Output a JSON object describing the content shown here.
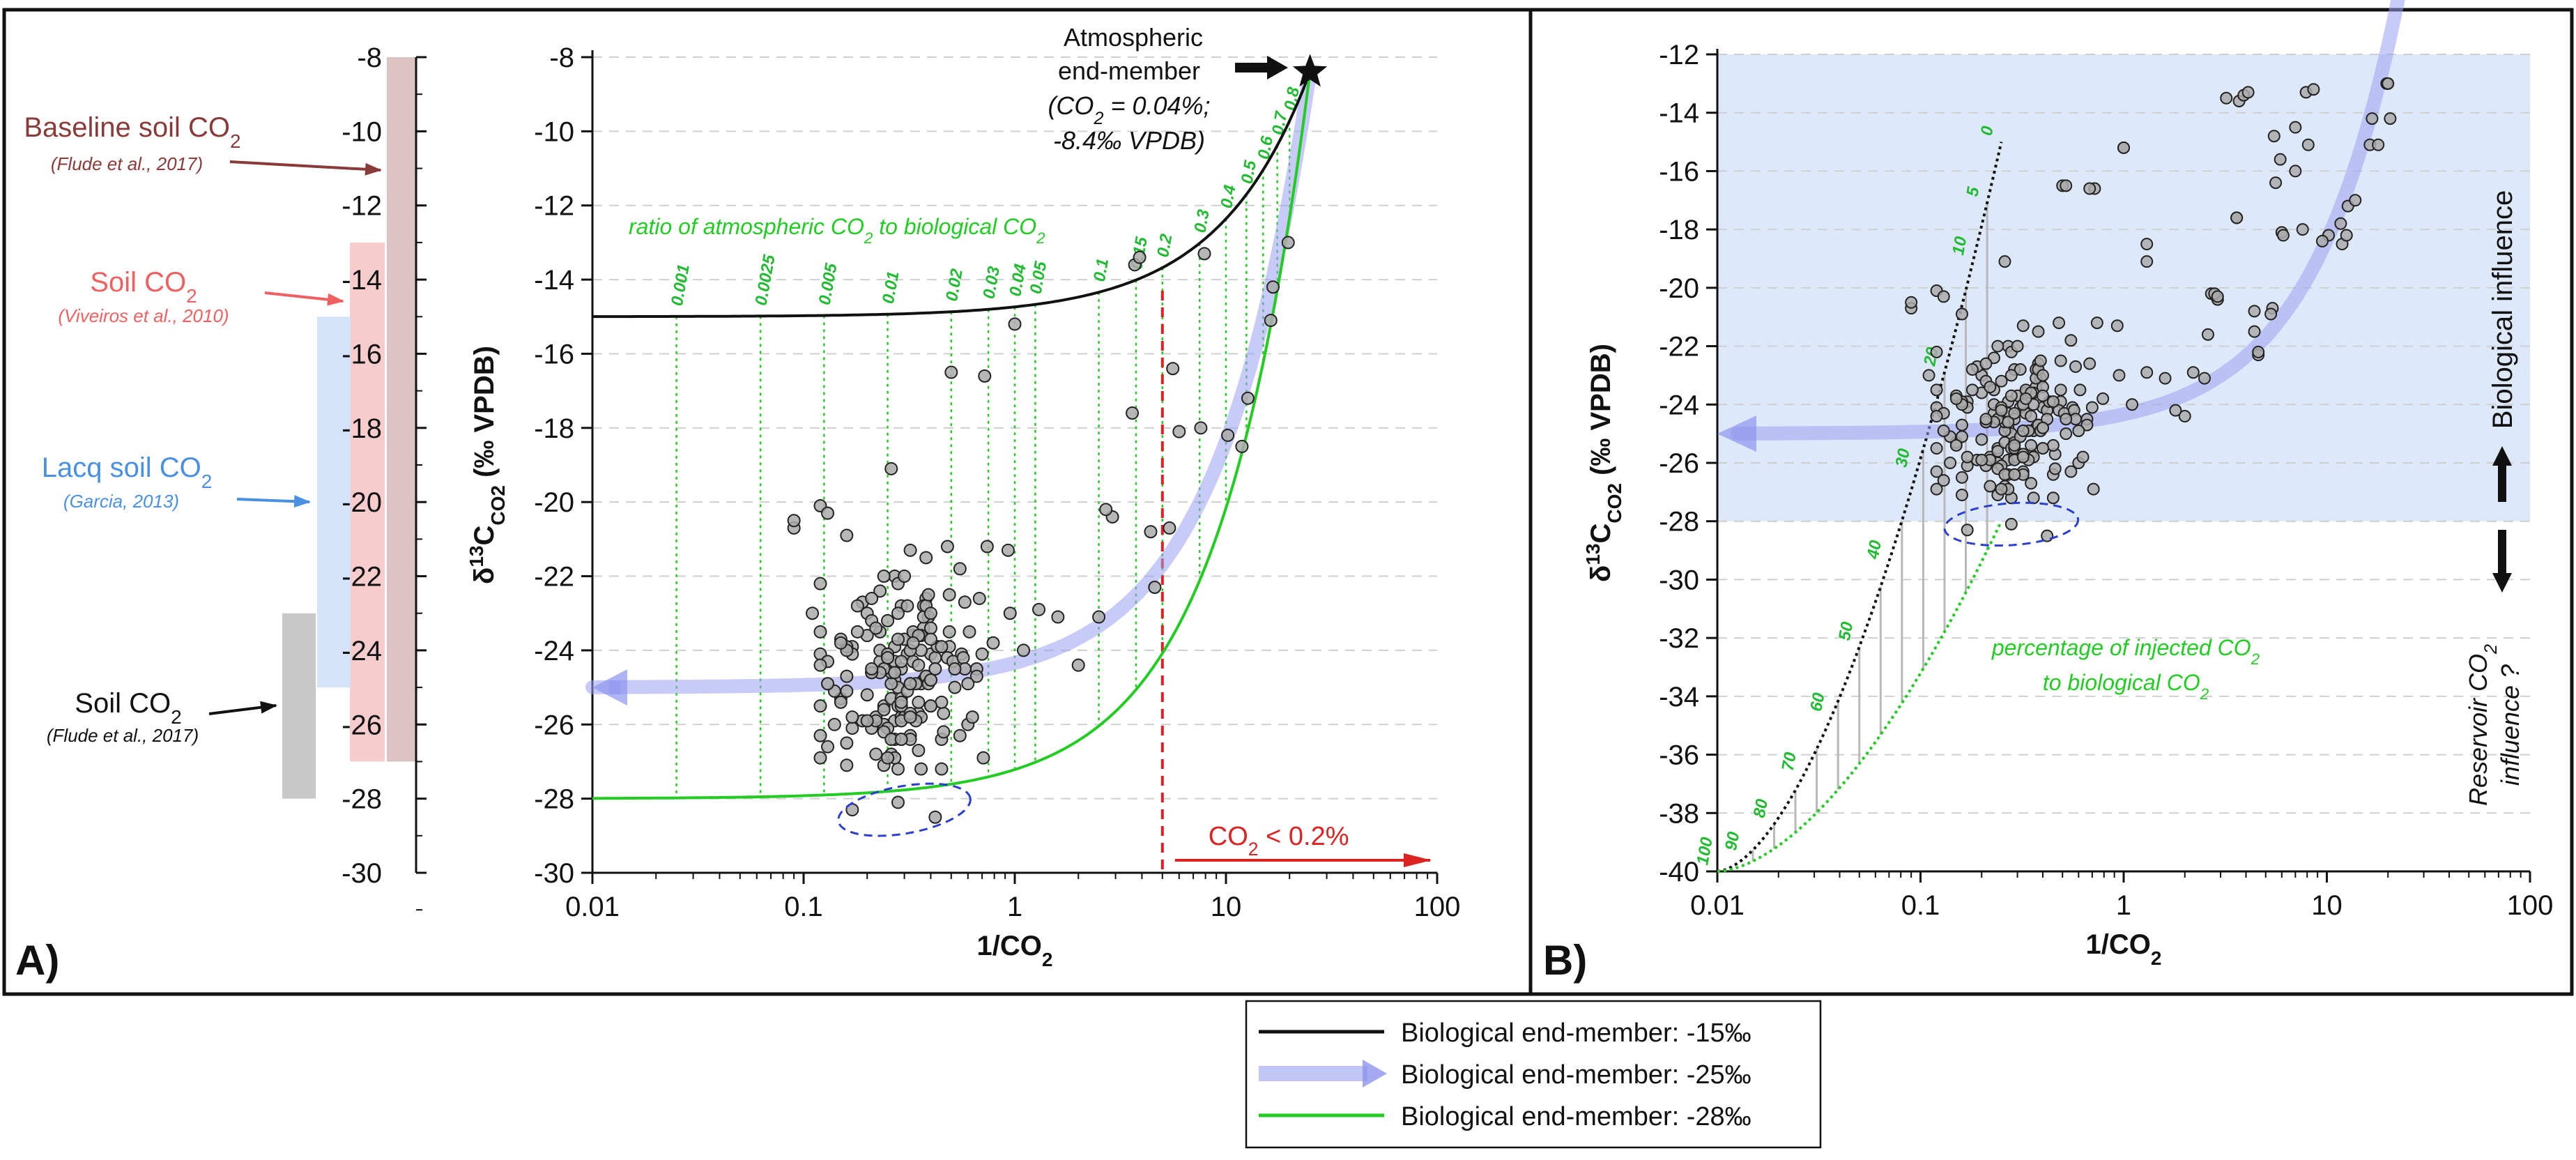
{
  "colors": {
    "black_curve": "#111111",
    "blue_curve": "#9aa0f0",
    "green_curve": "#22cc22",
    "red": "#dd2222",
    "band_baseline": "#d9bcbc",
    "band_soil": "#f6c6c6",
    "band_lacq": "#cfe0fa",
    "band_flude": "#c2c2c2",
    "shade_B": "#dde9fb",
    "points": "#aaaaaa",
    "arrow_baseline": "#8b3a3a",
    "arrow_soil": "#f06060",
    "arrow_lacq": "#4a90e2",
    "dashed_ellipse": "#2a3fcf"
  },
  "panelA": {
    "label": "A)",
    "scale_ticks": [
      "-8",
      "-10",
      "-12",
      "-14",
      "-16",
      "-18",
      "-20",
      "-22",
      "-24",
      "-26",
      "-28",
      "-30"
    ],
    "sources": [
      {
        "title": "Baseline soil CO",
        "sub": "2",
        "cite": "(Flude et al., 2017)",
        "range": [
          -8,
          -27
        ]
      },
      {
        "title": "Soil CO",
        "sub": "2",
        "cite": "(Viveiros et al., 2010)",
        "range": [
          -13,
          -27
        ]
      },
      {
        "title": "Lacq soil CO",
        "sub": "2",
        "cite": "(Garcia, 2013)",
        "range": [
          -15,
          -25
        ]
      },
      {
        "title": "Soil CO",
        "sub": "2",
        "cite": "(Flude et al., 2017)",
        "range": [
          -23,
          -28
        ]
      }
    ]
  },
  "panelB": {
    "label": "B)"
  },
  "chart_data": [
    {
      "type": "scatter",
      "title": "",
      "xlabel": "1/CO2",
      "ylabel": "δ13C CO2 (‰ VPDB)",
      "ylabel_parts": {
        "delta": "δ",
        "sup": "13",
        "c": "C",
        "sub": "CO",
        "sub2": "2",
        "rest": " (‰ VPDB)"
      },
      "xscale": "log",
      "xlim": [
        0.01,
        100
      ],
      "ylim": [
        -30,
        -8
      ],
      "x_ticks": [
        "0.01",
        "0.1",
        "1",
        "10",
        "100"
      ],
      "y_ticks": [
        "-8",
        "-10",
        "-12",
        "-14",
        "-16",
        "-18",
        "-20",
        "-22",
        "-24",
        "-26",
        "-28",
        "-30"
      ],
      "grid": "dashed horizontal",
      "curves": [
        {
          "name": "Biological end-member: -15‰",
          "end_member": -15
        },
        {
          "name": "Biological end-member: -25‰",
          "end_member": -25
        },
        {
          "name": "Biological end-member: -28‰",
          "end_member": -28
        }
      ],
      "atmospheric_end_member": {
        "x": 25,
        "y": -8.4,
        "text": [
          "Atmospheric",
          "end-member",
          "(CO",
          "2",
          " = 0.04%;",
          "-8.4‰ VPDB)"
        ]
      },
      "ratio_title": "ratio of atmospheric CO",
      "ratio_title_sub": "2",
      "ratio_title_rest": " to biological CO",
      "ratio_labels": [
        "0.001",
        "0.0025",
        "0.005",
        "0.01",
        "0.02",
        "0.03",
        "0.04",
        "0.05",
        "0.1",
        "0.15",
        "0.2",
        "0.3",
        "0.4",
        "0.5",
        "0.6",
        "0.7",
        "0.8"
      ],
      "ratio_values": [
        0.001,
        0.0025,
        0.005,
        0.01,
        0.02,
        0.03,
        0.04,
        0.05,
        0.1,
        0.15,
        0.2,
        0.3,
        0.4,
        0.5,
        0.6,
        0.7,
        0.8
      ],
      "threshold": {
        "x": 5,
        "label": "CO",
        "label_sub": "2",
        "label_rest": " < 0.2%"
      },
      "ellipse": {
        "x": 0.3,
        "y": -28.3
      },
      "points": [
        [
          0.45,
          -27.2
        ],
        [
          0.26,
          -26.8
        ],
        [
          0.39,
          -23.1
        ],
        [
          0.24,
          -25.5
        ],
        [
          0.56,
          -24.1
        ],
        [
          0.16,
          -27.1
        ],
        [
          0.27,
          -22.0
        ],
        [
          0.4,
          -24.1
        ],
        [
          0.6,
          -26.0
        ],
        [
          0.2,
          -23.0
        ],
        [
          0.68,
          -22.6
        ],
        [
          0.27,
          -23.9
        ],
        [
          0.38,
          -22.6
        ],
        [
          0.25,
          -23.2
        ],
        [
          0.19,
          -25.9
        ],
        [
          0.79,
          -23.8
        ],
        [
          0.32,
          -26.3
        ],
        [
          0.09,
          -20.7
        ],
        [
          0.17,
          -26.1
        ],
        [
          0.27,
          -25.9
        ],
        [
          0.37,
          -23.4
        ],
        [
          0.24,
          -27.1
        ],
        [
          0.33,
          -23.6
        ],
        [
          0.28,
          -27.2
        ],
        [
          0.27,
          -26.9
        ],
        [
          0.19,
          -22.7
        ],
        [
          0.23,
          -24.3
        ],
        [
          0.32,
          -26.4
        ],
        [
          0.15,
          -25.3
        ],
        [
          0.46,
          -25.7
        ],
        [
          0.27,
          -24.3
        ],
        [
          0.45,
          -25.4
        ],
        [
          0.42,
          -24.2
        ],
        [
          0.31,
          -24.1
        ],
        [
          0.12,
          -26.3
        ],
        [
          0.7,
          -24.1
        ],
        [
          0.17,
          -23.9
        ],
        [
          0.35,
          -25.7
        ],
        [
          0.12,
          -24.1
        ],
        [
          0.35,
          -25.4
        ],
        [
          0.49,
          -23.5
        ],
        [
          0.37,
          -24.8
        ],
        [
          0.23,
          -22.4
        ],
        [
          0.27,
          -24.8
        ],
        [
          0.17,
          -25.8
        ],
        [
          0.3,
          -23.7
        ],
        [
          0.32,
          -24.9
        ],
        [
          0.37,
          -22.8
        ],
        [
          0.49,
          -23.9
        ],
        [
          0.28,
          -25.0
        ],
        [
          0.14,
          -26.0
        ],
        [
          0.29,
          -25.8
        ],
        [
          0.36,
          -24.9
        ],
        [
          0.23,
          -24.0
        ],
        [
          0.17,
          -24.1
        ],
        [
          0.12,
          -23.5
        ],
        [
          0.36,
          -23.6
        ],
        [
          0.16,
          -23.9
        ],
        [
          0.24,
          -26.0
        ],
        [
          0.12,
          -22.2
        ],
        [
          0.25,
          -26.1
        ],
        [
          0.12,
          -25.5
        ],
        [
          0.2,
          -25.2
        ],
        [
          0.15,
          -23.7
        ],
        [
          0.21,
          -24.6
        ],
        [
          0.25,
          -24.2
        ],
        [
          0.33,
          -24.3
        ],
        [
          0.24,
          -22.0
        ],
        [
          0.26,
          -25.3
        ],
        [
          0.48,
          -24.2
        ],
        [
          0.22,
          -25.8
        ],
        [
          0.21,
          -22.6
        ],
        [
          0.66,
          -24.5
        ],
        [
          0.25,
          -24.1
        ],
        [
          0.21,
          -23.2
        ],
        [
          0.4,
          -25.5
        ],
        [
          0.49,
          -22.5
        ],
        [
          0.43,
          -23.9
        ],
        [
          0.22,
          -26.8
        ],
        [
          0.28,
          -25.5
        ],
        [
          0.16,
          -26.5
        ],
        [
          0.29,
          -25.3
        ],
        [
          0.3,
          -25.8
        ],
        [
          0.29,
          -22.8
        ],
        [
          0.26,
          -24.9
        ],
        [
          0.4,
          -25.5
        ],
        [
          0.31,
          -22.8
        ],
        [
          0.21,
          -26.1
        ],
        [
          0.26,
          -24.6
        ],
        [
          0.37,
          -23.1
        ],
        [
          0.28,
          -22.2
        ],
        [
          0.14,
          -25.1
        ],
        [
          0.29,
          -25.5
        ],
        [
          0.36,
          -24.0
        ],
        [
          0.24,
          -26.2
        ],
        [
          0.13,
          -24.9
        ],
        [
          0.38,
          -22.8
        ],
        [
          0.66,
          -24.7
        ],
        [
          0.29,
          -24.5
        ],
        [
          0.12,
          -26.9
        ],
        [
          0.2,
          -23.6
        ],
        [
          0.51,
          -24.3
        ],
        [
          0.29,
          -26.4
        ],
        [
          0.16,
          -24.7
        ],
        [
          0.23,
          -23.5
        ],
        [
          0.38,
          -24.7
        ],
        [
          0.45,
          -23.9
        ],
        [
          0.18,
          -22.8
        ],
        [
          0.24,
          -24.5
        ],
        [
          0.34,
          -24.9
        ],
        [
          0.35,
          -24.4
        ],
        [
          0.38,
          -24.7
        ],
        [
          0.11,
          -23.0
        ],
        [
          0.57,
          -24.2
        ],
        [
          0.45,
          -26.4
        ],
        [
          0.31,
          -25.1
        ],
        [
          0.58,
          -22.7
        ],
        [
          0.4,
          -23.0
        ],
        [
          0.13,
          -24.3
        ],
        [
          0.39,
          -24.9
        ],
        [
          0.16,
          -25.1
        ],
        [
          0.22,
          -25.9
        ],
        [
          0.4,
          -23.4
        ],
        [
          0.2,
          -25.9
        ],
        [
          0.58,
          -24.5
        ],
        [
          0.12,
          -24.4
        ],
        [
          0.71,
          -26.9
        ],
        [
          0.18,
          -23.5
        ],
        [
          0.16,
          -24.0
        ],
        [
          0.29,
          -25.9
        ],
        [
          0.27,
          -24.6
        ],
        [
          0.36,
          -25.8
        ],
        [
          0.4,
          -23.7
        ],
        [
          0.6,
          -24.9
        ],
        [
          0.4,
          -24.8
        ],
        [
          0.27,
          -26.4
        ],
        [
          0.32,
          -24.0
        ],
        [
          0.34,
          -25.9
        ],
        [
          0.42,
          -24.5
        ],
        [
          0.39,
          -22.5
        ],
        [
          0.33,
          -23.5
        ],
        [
          0.52,
          -24.5
        ],
        [
          0.35,
          -26.7
        ],
        [
          0.25,
          -24.2
        ],
        [
          0.46,
          -26.2
        ],
        [
          0.55,
          -26.3
        ],
        [
          0.35,
          -23.6
        ],
        [
          0.32,
          -25.7
        ],
        [
          0.15,
          -25.4
        ],
        [
          0.15,
          -23.8
        ],
        [
          0.61,
          -23.5
        ],
        [
          0.23,
          -24.6
        ],
        [
          0.28,
          -23.0
        ],
        [
          0.22,
          -23.4
        ],
        [
          0.13,
          -26.6
        ],
        [
          0.4,
          -24.8
        ],
        [
          0.63,
          -25.8
        ],
        [
          0.25,
          -26.9
        ],
        [
          0.32,
          -25.8
        ],
        [
          0.28,
          -23.7
        ],
        [
          0.36,
          -27.2
        ],
        [
          0.52,
          -25.0
        ],
        [
          0.32,
          -24.9
        ],
        [
          0.29,
          -24.3
        ],
        [
          0.26,
          -26.4
        ],
        [
          0.21,
          -24.6
        ],
        [
          0.24,
          -25.6
        ],
        [
          0.21,
          -24.5
        ],
        [
          0.33,
          -23.8
        ],
        [
          0.29,
          -26.4
        ],
        [
          0.3,
          -22.0
        ],
        [
          0.29,
          -25.4
        ],
        [
          0.09,
          -20.5
        ],
        [
          0.12,
          -20.1
        ],
        [
          0.13,
          -20.3
        ],
        [
          0.16,
          -20.9
        ],
        [
          0.26,
          -19.1
        ],
        [
          0.32,
          -21.3
        ],
        [
          0.38,
          -21.5
        ],
        [
          0.48,
          -21.2
        ],
        [
          0.55,
          -21.8
        ],
        [
          0.74,
          -21.2
        ],
        [
          0.93,
          -21.3
        ],
        [
          0.95,
          -23.0
        ],
        [
          1.1,
          -24.0
        ],
        [
          1.3,
          -22.9
        ],
        [
          1.6,
          -23.1
        ],
        [
          2.0,
          -24.4
        ],
        [
          2.5,
          -23.1
        ],
        [
          2.9,
          -20.4
        ],
        [
          1.0,
          -15.2
        ],
        [
          0.5,
          -16.5
        ],
        [
          0.72,
          -16.6
        ],
        [
          2.7,
          -20.2
        ],
        [
          3.6,
          -17.6
        ],
        [
          3.7,
          -13.6
        ],
        [
          3.9,
          -13.4
        ],
        [
          4.4,
          -20.8
        ],
        [
          4.6,
          -22.3
        ],
        [
          5.6,
          -16.4
        ],
        [
          5.4,
          -20.7
        ],
        [
          6.0,
          -18.1
        ],
        [
          7.6,
          -18.0
        ],
        [
          7.9,
          -13.3
        ],
        [
          10.2,
          -18.2
        ],
        [
          12.7,
          -17.2
        ],
        [
          16.7,
          -14.2
        ],
        [
          19.7,
          -13.0
        ],
        [
          16.3,
          -15.1
        ],
        [
          11.9,
          -18.5
        ],
        [
          0.17,
          -28.3
        ],
        [
          0.28,
          -28.1
        ],
        [
          0.42,
          -28.5
        ]
      ]
    },
    {
      "type": "scatter",
      "title": "",
      "xlabel": "1/CO2",
      "ylabel": "δ13C CO2 (‰ VPDB)",
      "xscale": "log",
      "xlim": [
        0.01,
        100
      ],
      "ylim": [
        -40,
        -12
      ],
      "x_ticks": [
        "0.01",
        "0.1",
        "1",
        "10",
        "100"
      ],
      "y_ticks": [
        "-12",
        "-14",
        "-16",
        "-18",
        "-20",
        "-22",
        "-24",
        "-26",
        "-28",
        "-30",
        "-32",
        "-34",
        "-36",
        "-38",
        "-40"
      ],
      "shaded_range": [
        -28,
        -12
      ],
      "mixing_labels": [
        "0",
        "5",
        "10",
        "20",
        "30",
        "40",
        "50",
        "60",
        "70",
        "80",
        "90",
        "100"
      ],
      "mixing_percent": [
        0,
        5,
        10,
        20,
        30,
        40,
        50,
        60,
        70,
        80,
        90,
        100
      ],
      "injected_end_member": -40,
      "annotation_green": [
        "percentage of injected CO",
        "2",
        "to biological CO",
        "2"
      ],
      "bio_influence": "Biological influence",
      "reservoir_influence": [
        "Reservoir CO",
        "2",
        "influence ?"
      ],
      "ellipse": {
        "x": 0.28,
        "y": -28.1
      },
      "points_extra": [
        [
          3.2,
          -13.5
        ],
        [
          4.1,
          -13.3
        ],
        [
          8.6,
          -13.2
        ],
        [
          7.0,
          -14.5
        ],
        [
          5.5,
          -14.8
        ],
        [
          5.9,
          -15.6
        ],
        [
          6.1,
          -18.2
        ],
        [
          3.6,
          -17.6
        ],
        [
          5.3,
          -20.9
        ],
        [
          2.8,
          -20.2
        ],
        [
          2.2,
          -22.9
        ],
        [
          1.3,
          -18.5
        ],
        [
          1.3,
          -19.1
        ],
        [
          1.0,
          -15.2
        ],
        [
          0.52,
          -16.5
        ],
        [
          0.68,
          -16.6
        ],
        [
          11.7,
          -17.8
        ],
        [
          12.5,
          -18.2
        ],
        [
          13.8,
          -17.0
        ],
        [
          17.9,
          -15.1
        ],
        [
          20.0,
          -13.0
        ],
        [
          20.5,
          -14.2
        ],
        [
          9.5,
          -18.4
        ],
        [
          8.1,
          -15.1
        ],
        [
          7.0,
          -16.0
        ],
        [
          4.4,
          -21.5
        ],
        [
          4.6,
          -22.2
        ],
        [
          1.8,
          -24.2
        ],
        [
          2.6,
          -21.6
        ],
        [
          2.9,
          -20.3
        ]
      ]
    }
  ],
  "legend": {
    "items": [
      {
        "label": "Biological end-member: -15‰",
        "style": "black-line"
      },
      {
        "label": "Biological end-member: -25‰",
        "style": "blue-arrow"
      },
      {
        "label": "Biological end-member: -28‰",
        "style": "green-line"
      }
    ]
  }
}
